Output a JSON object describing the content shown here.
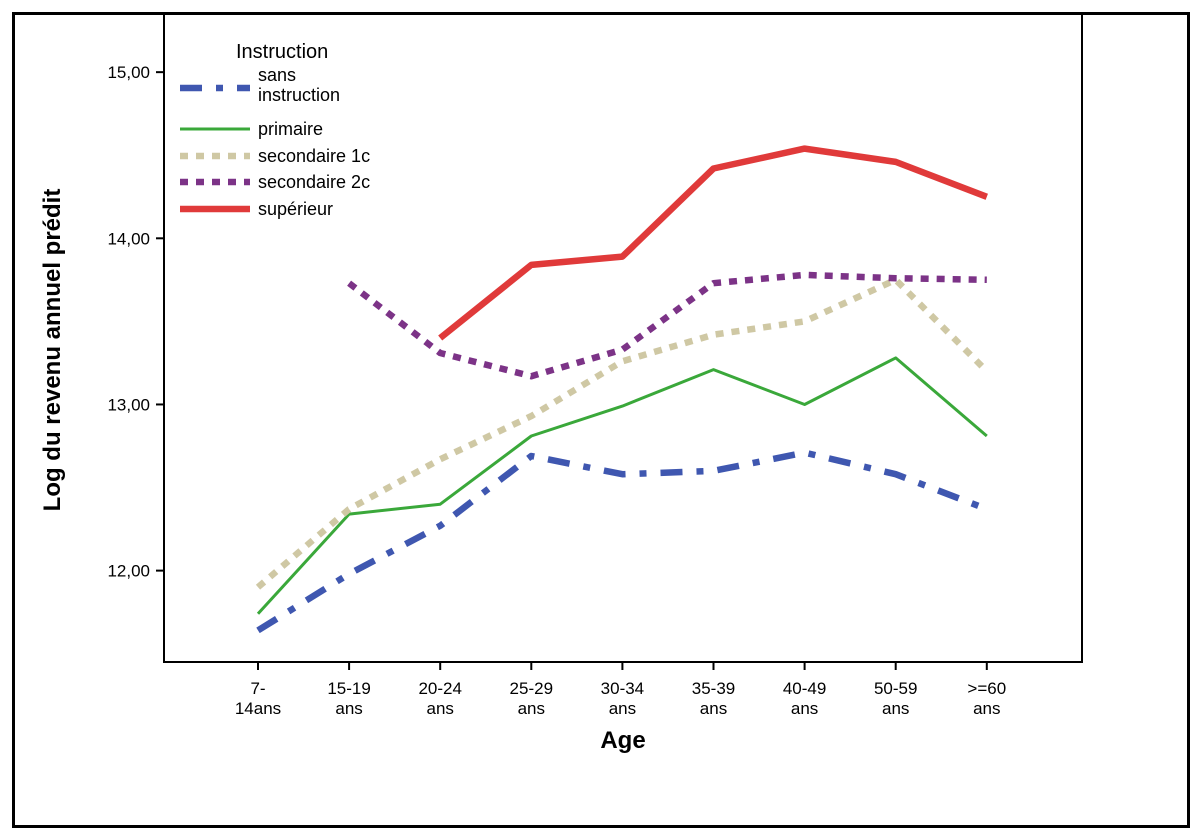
{
  "chart_data": {
    "type": "line",
    "title": "",
    "xlabel": "Age",
    "ylabel": "Log du revenu annuel prédit",
    "ylim": [
      11.45,
      15.35
    ],
    "yticks": [
      12.0,
      13.0,
      14.0,
      15.0
    ],
    "ytick_labels": [
      "12,00",
      "13,00",
      "14,00",
      "15,00"
    ],
    "categories": [
      [
        "7-",
        "14ans"
      ],
      [
        "15-19",
        "ans"
      ],
      [
        "20-24",
        "ans"
      ],
      [
        "25-29",
        "ans"
      ],
      [
        "30-34",
        "ans"
      ],
      [
        "35-39",
        "ans"
      ],
      [
        "40-49",
        "ans"
      ],
      [
        "50-59",
        "ans"
      ],
      [
        ">=60",
        "ans"
      ]
    ],
    "legend_title": "Instruction",
    "legend_position": "top-left",
    "grid": false,
    "series": [
      {
        "name": [
          "sans",
          "instruction"
        ],
        "color": "#3f57b0",
        "style": "dashdot",
        "values": [
          11.64,
          11.98,
          12.27,
          12.69,
          12.58,
          12.6,
          12.71,
          12.58,
          12.37
        ]
      },
      {
        "name": [
          "primaire"
        ],
        "color": "#3aa83a",
        "style": "solid",
        "values": [
          11.74,
          12.34,
          12.4,
          12.81,
          12.99,
          13.21,
          13.0,
          13.28,
          12.81
        ]
      },
      {
        "name": [
          "secondaire 1c"
        ],
        "color": "#cfc8a4",
        "style": "dotted",
        "values": [
          11.9,
          12.37,
          12.67,
          12.93,
          13.26,
          13.42,
          13.5,
          13.75,
          13.2
        ]
      },
      {
        "name": [
          "secondaire 2c"
        ],
        "color": "#7c3387",
        "style": "dotted",
        "values": [
          null,
          13.73,
          13.31,
          13.17,
          13.33,
          13.73,
          13.78,
          13.76,
          13.75
        ]
      },
      {
        "name": [
          "supérieur"
        ],
        "color": "#e03a3a",
        "style": "solid",
        "values": [
          null,
          null,
          13.4,
          13.84,
          13.89,
          14.42,
          14.54,
          14.46,
          14.25
        ]
      }
    ]
  }
}
